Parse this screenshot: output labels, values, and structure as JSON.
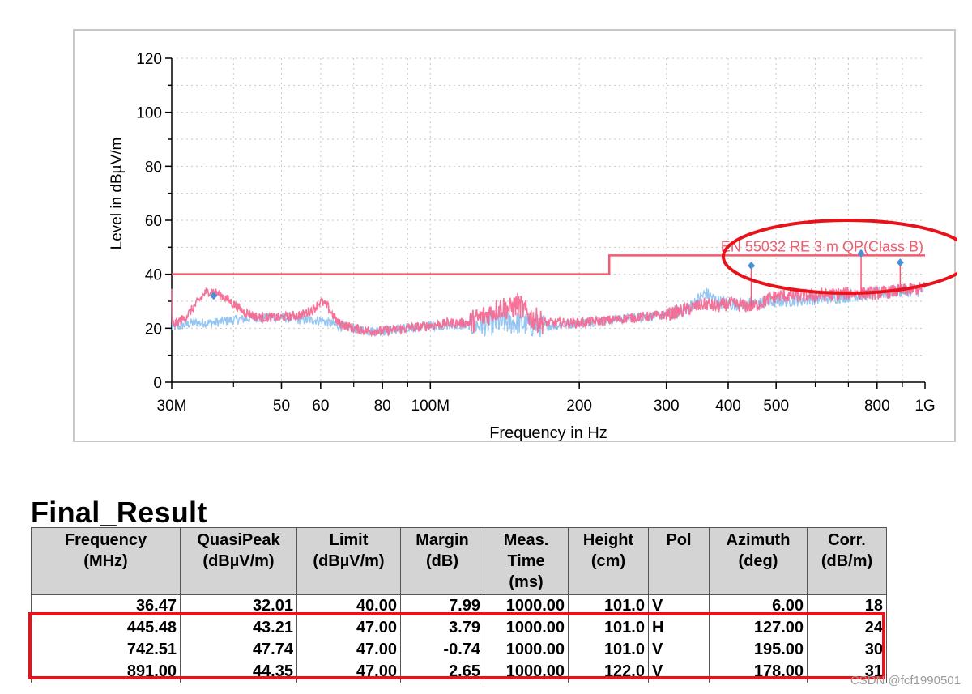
{
  "chart_data": {
    "type": "line",
    "xlabel": "Frequency in Hz",
    "ylabel": "Level in dBµV/m",
    "x_scale": "log",
    "xlim": [
      30,
      1000
    ],
    "ylim": [
      0,
      120
    ],
    "y_ticks": [
      0,
      20,
      40,
      60,
      80,
      100,
      120
    ],
    "x_ticks": [
      {
        "v": 30,
        "label": "30M"
      },
      {
        "v": 50,
        "label": "50"
      },
      {
        "v": 60,
        "label": "60"
      },
      {
        "v": 80,
        "label": "80"
      },
      {
        "v": 100,
        "label": "100M"
      },
      {
        "v": 200,
        "label": "200"
      },
      {
        "v": 300,
        "label": "300"
      },
      {
        "v": 400,
        "label": "400"
      },
      {
        "v": 500,
        "label": "500"
      },
      {
        "v": 800,
        "label": "800"
      },
      {
        "v": 1000,
        "label": "1G"
      }
    ],
    "grid": true,
    "limit_line": {
      "label": "EN 55032 RE 3 m QP(Class B)",
      "color": "#f25a6e",
      "x": [
        30,
        230,
        230,
        1000
      ],
      "y": [
        40,
        40,
        47,
        47
      ]
    },
    "series": [
      {
        "color": "#8fc2f0",
        "x": [
          30,
          33,
          36,
          40,
          45,
          50,
          55,
          60,
          65,
          70,
          75,
          80,
          90,
          100,
          120,
          140,
          150,
          160,
          180,
          200,
          230,
          260,
          300,
          330,
          360,
          380,
          400,
          450,
          500,
          600,
          700,
          800,
          900,
          1000
        ],
        "y": [
          20,
          22,
          22,
          23,
          24,
          24,
          23,
          23,
          21,
          20,
          19,
          19,
          20,
          21,
          21,
          22,
          22,
          21,
          21,
          22,
          23,
          24,
          25,
          27,
          33,
          30,
          29,
          29,
          30,
          31,
          32,
          33,
          34,
          34
        ]
      },
      {
        "color": "#f46b94",
        "x": [
          30,
          32,
          34,
          35,
          36,
          38,
          40,
          42,
          45,
          50,
          55,
          58,
          60,
          62,
          65,
          70,
          75,
          80,
          90,
          100,
          110,
          120,
          130,
          140,
          145,
          150,
          160,
          170,
          180,
          200,
          230,
          260,
          300,
          330,
          360,
          380,
          400,
          450,
          500,
          550,
          600,
          700,
          800,
          900,
          1000
        ],
        "y": [
          21,
          24,
          30,
          33,
          34,
          32,
          29,
          26,
          24,
          24,
          25,
          27,
          30,
          28,
          22,
          20,
          19,
          19,
          20,
          21,
          22,
          22,
          25,
          28,
          27,
          29,
          24,
          22,
          22,
          22,
          23,
          24,
          25,
          27,
          29,
          28,
          29,
          28,
          32,
          32,
          32,
          33,
          33,
          34,
          35
        ]
      }
    ],
    "markers": [
      {
        "x": 36.47,
        "y": 32.01
      },
      {
        "x": 445.48,
        "y": 43.21
      },
      {
        "x": 742.51,
        "y": 47.74
      },
      {
        "x": 891.0,
        "y": 44.35
      }
    ],
    "marker_color": "#4a90d9"
  },
  "table": {
    "title": "Final_Result",
    "headers": [
      "Frequency\n(MHz)",
      "QuasiPeak\n(dBµV/m)",
      "Limit\n(dBµV/m)",
      "Margin\n(dB)",
      "Meas.\nTime\n(ms)",
      "Height\n(cm)",
      "Pol",
      "Azimuth\n(deg)",
      "Corr.\n(dB/m)"
    ],
    "rows": [
      [
        "36.47",
        "32.01",
        "40.00",
        "7.99",
        "1000.00",
        "101.0",
        "V",
        "6.00",
        "18"
      ],
      [
        "445.48",
        "43.21",
        "47.00",
        "3.79",
        "1000.00",
        "101.0",
        "H",
        "127.00",
        "24"
      ],
      [
        "742.51",
        "47.74",
        "47.00",
        "-0.74",
        "1000.00",
        "101.0",
        "V",
        "195.00",
        "30"
      ],
      [
        "891.00",
        "44.35",
        "47.00",
        "2.65",
        "1000.00",
        "122.0",
        "V",
        "178.00",
        "31"
      ]
    ]
  },
  "annotation_color": "#e8121b",
  "watermark": "CSDN @fcf1990501"
}
